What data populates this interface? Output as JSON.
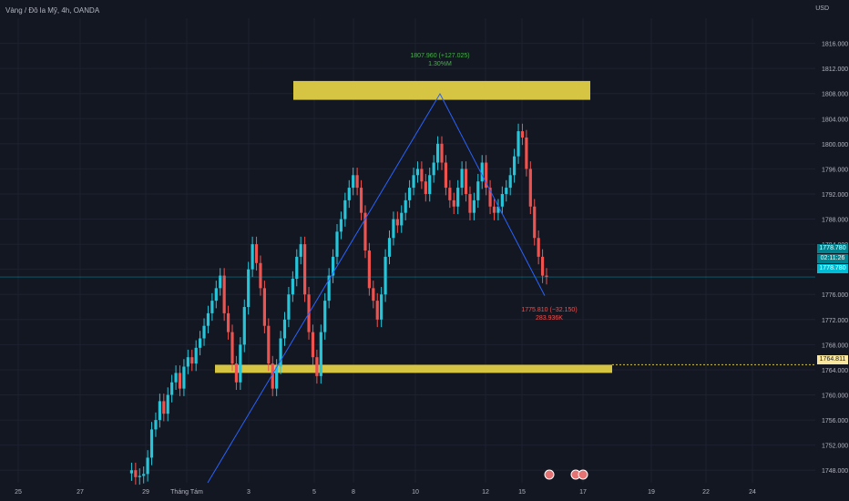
{
  "header": {
    "symbol_title": "Vàng / Đô la Mỹ, 4h, OANDA",
    "currency": "USD"
  },
  "chart_data": {
    "type": "candlestick",
    "ylim": [
      1746,
      1820
    ],
    "y_ticks": [
      "1748.000",
      "1752.000",
      "1756.000",
      "1760.000",
      "1764.000",
      "1768.000",
      "1772.000",
      "1776.000",
      "1780.000",
      "1784.000",
      "1788.000",
      "1792.000",
      "1796.000",
      "1800.000",
      "1804.000",
      "1808.000",
      "1812.000",
      "1816.000"
    ],
    "x_ticks": [
      "25",
      "27",
      "29",
      "Tháng Tám",
      "3",
      "5",
      "8",
      "10",
      "12",
      "15",
      "17",
      "19",
      "22",
      "24"
    ],
    "series": [
      {
        "values": [
          1747.5,
          1748.0,
          1746.9,
          1747.1,
          1747.4,
          1750.0,
          1754.5,
          1756.0,
          1759.0,
          1757.0,
          1760.0,
          1762.0,
          1763.5,
          1761.0,
          1764.5,
          1766.0,
          1765.0,
          1767.5,
          1769.0,
          1771.0,
          1773.0,
          1775.0,
          1777.0,
          1779.0,
          1773.0,
          1770.0,
          1765.0,
          1762.0,
          1768.0,
          1774.0,
          1780.0,
          1784.0,
          1781.0,
          1777.0,
          1771.0,
          1765.0,
          1761.0,
          1764.5,
          1769.0,
          1772.0,
          1776.0,
          1778.5,
          1782.0,
          1784.0,
          1776.0,
          1770.0,
          1766.0,
          1763.0,
          1770.0,
          1775.0,
          1779.0,
          1782.0,
          1786.0,
          1788.0,
          1791.0,
          1793.0,
          1795.0,
          1793.0,
          1789.0,
          1783.0,
          1777.0,
          1775.0,
          1772.0,
          1776.0,
          1782.0,
          1785.0,
          1788.0,
          1787.0,
          1789.0,
          1791.0,
          1793.0,
          1795.0,
          1796.0,
          1794.0,
          1792.0,
          1795.0,
          1797.0,
          1800.0,
          1797.0,
          1793.0,
          1791.0,
          1790.0,
          1793.0,
          1796.0,
          1792.0,
          1789.0,
          1791.0,
          1794.0,
          1797.0,
          1793.0,
          1790.0,
          1789.0,
          1790.0,
          1792.0,
          1793.0,
          1795.0,
          1798.0,
          1802.0,
          1801.0,
          1796.0,
          1790.0,
          1785.0,
          1782.0,
          1779.0,
          1778.8
        ]
      }
    ],
    "annotations": {
      "high_label": "1807.960 (+127.025)",
      "high_pct": "1.30%M",
      "low_label": "1775.810 (−32.150)",
      "low_vol": "283.936K",
      "current_price": "1778.780",
      "countdown": "02:11:26",
      "level_price": "1764.811"
    },
    "zones": [
      {
        "from": 1807,
        "to": 1810,
        "color": "#d6c443"
      },
      {
        "from": 1763.5,
        "to": 1764.8,
        "color": "#d6c443"
      }
    ]
  },
  "colors": {
    "up": "#26c6da",
    "down": "#ef5350",
    "zone": "#d6c443",
    "line": "#2962ff",
    "grid": "#1e2230",
    "label_bg": "#00bcd4"
  }
}
